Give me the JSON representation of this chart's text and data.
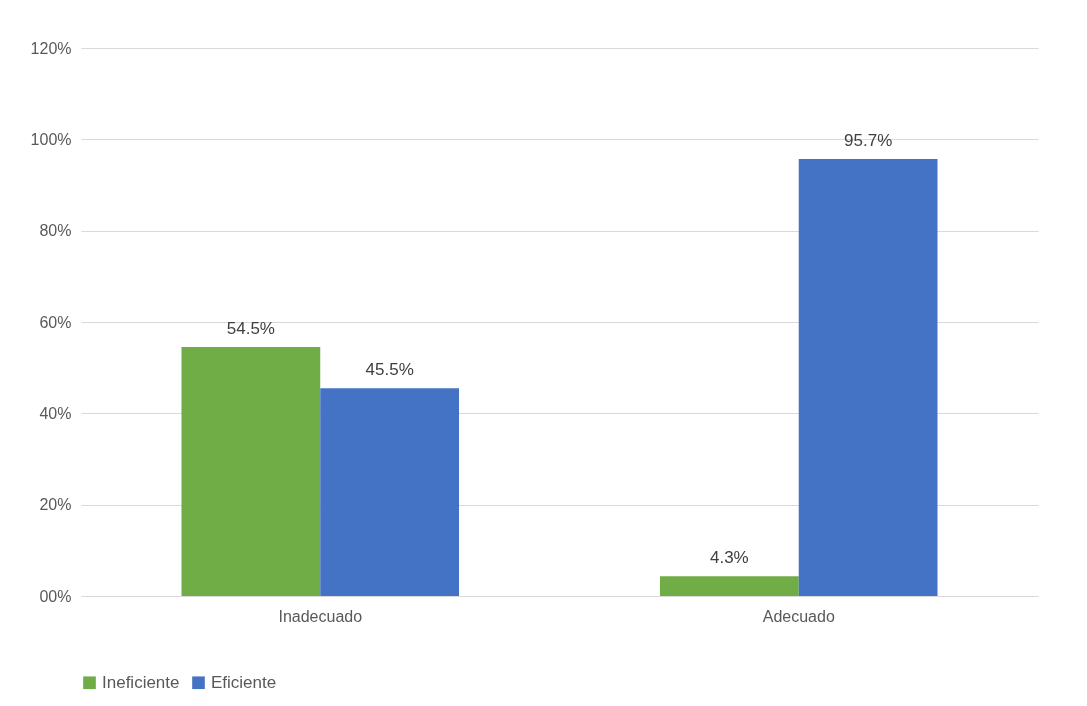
{
  "chart_data": {
    "type": "bar",
    "categories": [
      "Inadecuado",
      "Adecuado"
    ],
    "series": [
      {
        "name": "Ineficiente",
        "color": "#70ad47",
        "values": [
          54.5,
          4.3
        ],
        "value_labels": [
          "54.5%",
          "4.3%"
        ]
      },
      {
        "name": "Eficiente",
        "color": "#4472c4",
        "values": [
          45.5,
          95.7
        ],
        "value_labels": [
          "45.5%",
          "95.7%"
        ]
      }
    ],
    "ylim": [
      0,
      120
    ],
    "yticks": [
      {
        "value": 0,
        "label": "00%"
      },
      {
        "value": 20,
        "label": "20%"
      },
      {
        "value": 40,
        "label": "40%"
      },
      {
        "value": 60,
        "label": "60%"
      },
      {
        "value": 80,
        "label": "80%"
      },
      {
        "value": 100,
        "label": "100%"
      },
      {
        "value": 120,
        "label": "120%"
      }
    ],
    "grid": "y",
    "legend": "bottom"
  }
}
